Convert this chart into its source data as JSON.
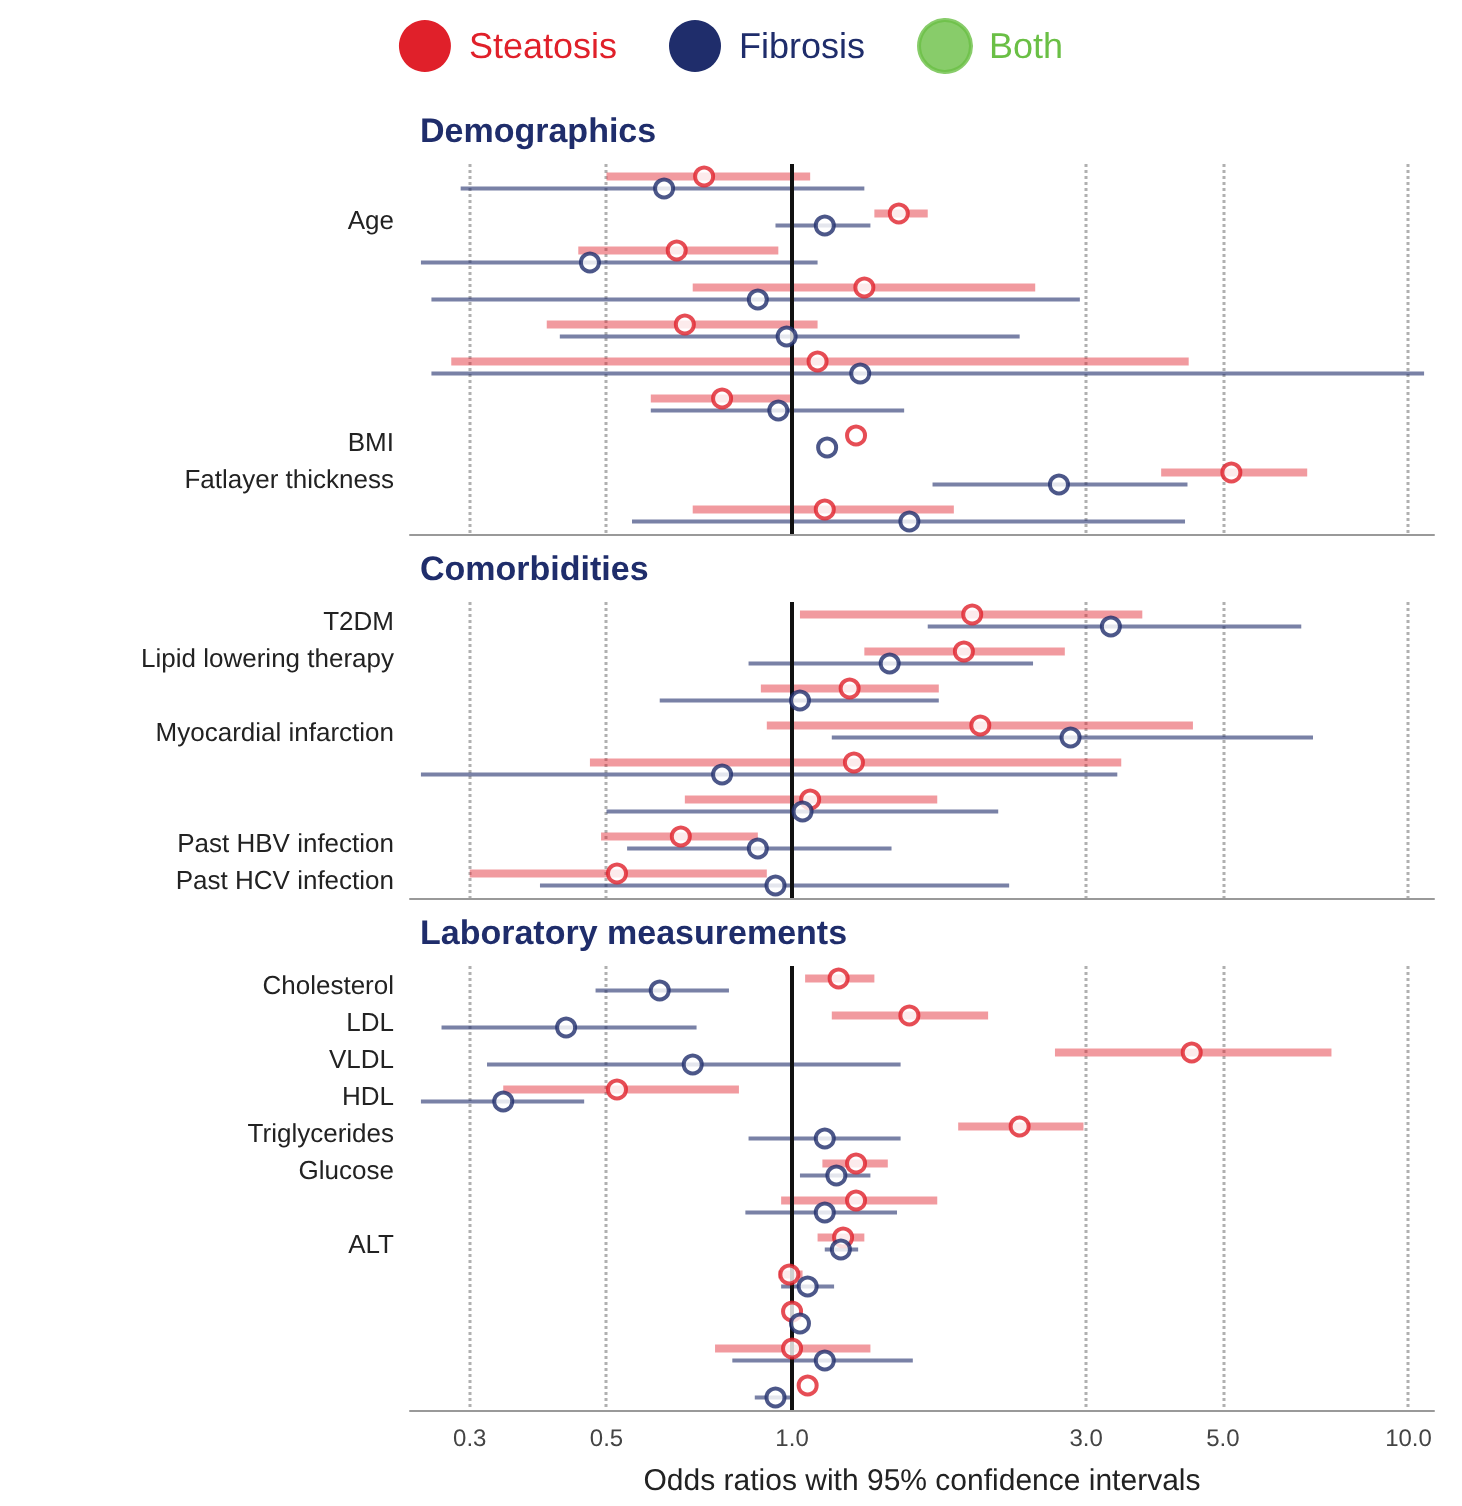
{
  "chart_data": [
    {
      "type": "scatter",
      "orientation": "horizontal",
      "title": "Demographics",
      "legend": "top",
      "log": "x",
      "grid": "x",
      "tick_labels": "y",
      "marker": "circle",
      "categories": [
        null,
        "Age",
        null,
        null,
        null,
        null,
        null,
        "BMI",
        "Fatlayer thickness",
        null
      ],
      "xlim": [
        0.24,
        11
      ],
      "xticks": [
        {
          "value": 0.3,
          "label": null
        },
        {
          "value": 0.5,
          "label": null
        },
        {
          "value": 1,
          "label": null
        },
        {
          "value": 3,
          "label": null
        },
        {
          "value": 5,
          "label": null
        },
        {
          "value": 10,
          "label": null
        }
      ],
      "ref_lines": [
        {
          "axis": "x",
          "value": 1,
          "color": "#111111"
        }
      ],
      "series": [
        {
          "name": "Steatosis",
          "color": "#e0202a",
          "values": [
            0.72,
            1.49,
            0.65,
            1.31,
            0.67,
            1.1,
            0.77,
            1.27,
            5.16,
            1.13
          ],
          "errors": [
            [
              0.5,
              1.07
            ],
            [
              1.36,
              1.66
            ],
            [
              0.45,
              0.95
            ],
            [
              0.69,
              2.48
            ],
            [
              0.4,
              1.1
            ],
            [
              0.28,
              4.4
            ],
            [
              0.59,
              1.0
            ],
            null,
            [
              3.97,
              6.85
            ],
            [
              0.69,
              1.83
            ]
          ]
        },
        {
          "name": "Fibrosis",
          "color": "#1f2d6b",
          "values": [
            0.62,
            1.13,
            0.47,
            0.88,
            0.98,
            1.29,
            0.95,
            1.14,
            2.71,
            1.55
          ],
          "errors": [
            [
              0.29,
              1.31
            ],
            [
              0.94,
              1.34
            ],
            [
              0.25,
              1.1
            ],
            [
              0.26,
              2.93
            ],
            [
              0.42,
              2.34
            ],
            [
              0.26,
              10.6
            ],
            [
              0.59,
              1.52
            ],
            null,
            [
              1.69,
              4.38
            ],
            [
              0.55,
              4.34
            ]
          ]
        },
        {
          "name": "Both",
          "color": "#6abf45",
          "values": [
            null,
            null,
            null,
            null,
            null,
            null,
            null,
            null,
            null,
            null
          ]
        }
      ]
    },
    {
      "type": "scatter",
      "orientation": "horizontal",
      "title": "Comorbidities",
      "log": "x",
      "grid": "x",
      "tick_labels": "y",
      "marker": "circle",
      "categories": [
        "T2DM",
        "Lipid lowering therapy",
        null,
        "Myocardial infarction",
        null,
        null,
        "Past HBV infection",
        "Past HCV infection"
      ],
      "xlim": [
        0.24,
        11
      ],
      "xticks": [
        {
          "value": 0.3,
          "label": null
        },
        {
          "value": 0.5,
          "label": null
        },
        {
          "value": 1,
          "label": null
        },
        {
          "value": 3,
          "label": null
        },
        {
          "value": 5,
          "label": null
        },
        {
          "value": 10,
          "label": null
        }
      ],
      "ref_lines": [
        {
          "axis": "x",
          "value": 1,
          "color": "#111111"
        }
      ],
      "series": [
        {
          "color": "#e0202a",
          "values": [
            1.96,
            1.9,
            1.24,
            2.02,
            1.26,
            1.07,
            0.66,
            0.52
          ],
          "errors": [
            [
              1.03,
              3.7
            ],
            [
              1.31,
              2.77
            ],
            [
              0.89,
              1.73
            ],
            [
              0.91,
              4.47
            ],
            [
              0.47,
              3.42
            ],
            [
              0.67,
              1.72
            ],
            [
              0.49,
              0.88
            ],
            [
              0.3,
              0.91
            ]
          ]
        },
        {
          "color": "#1f2d6b",
          "values": [
            3.29,
            1.44,
            1.03,
            2.83,
            0.77,
            1.04,
            0.88,
            0.94
          ],
          "errors": [
            [
              1.66,
              6.7
            ],
            [
              0.85,
              2.46
            ],
            [
              0.61,
              1.73
            ],
            [
              1.16,
              7.0
            ],
            [
              0.25,
              3.37
            ],
            [
              0.5,
              2.16
            ],
            [
              0.54,
              1.45
            ],
            [
              0.39,
              2.25
            ]
          ]
        }
      ]
    },
    {
      "type": "scatter",
      "orientation": "horizontal",
      "title": "Laboratory measurements",
      "xlabel": "Odds ratios with 95% confidence intervals",
      "log": "x",
      "grid": "x",
      "marker": "circle",
      "categories": [
        "Cholesterol",
        "LDL",
        "VLDL",
        "HDL",
        "Triglycerides",
        "Glucose",
        null,
        "ALT",
        null,
        null,
        null,
        null
      ],
      "xlim": [
        0.24,
        11
      ],
      "xticks": [
        {
          "value": 0.3,
          "label": "0.3"
        },
        {
          "value": 0.5,
          "label": "0.5"
        },
        {
          "value": 1,
          "label": "1.0"
        },
        {
          "value": 3,
          "label": "3.0"
        },
        {
          "value": 5,
          "label": "5.0"
        },
        {
          "value": 10,
          "label": "10.0"
        }
      ],
      "ref_lines": [
        {
          "axis": "x",
          "value": 1,
          "color": "#111111"
        }
      ],
      "series": [
        {
          "color": "#e0202a",
          "values": [
            1.19,
            1.55,
            4.45,
            0.52,
            2.34,
            1.27,
            1.27,
            1.21,
            0.99,
            1.0,
            1.0,
            1.06
          ],
          "errors": [
            [
              1.05,
              1.36
            ],
            [
              1.16,
              2.08
            ],
            [
              2.67,
              7.5
            ],
            [
              0.34,
              0.82
            ],
            [
              1.86,
              2.97
            ],
            [
              1.12,
              1.43
            ],
            [
              0.96,
              1.72
            ],
            [
              1.1,
              1.31
            ],
            [
              0.95,
              1.04
            ],
            null,
            [
              0.75,
              1.34
            ],
            null
          ]
        },
        {
          "color": "#1f2d6b",
          "values": [
            0.61,
            0.43,
            0.69,
            0.34,
            1.13,
            1.18,
            1.13,
            1.2,
            1.06,
            1.03,
            1.13,
            0.94
          ],
          "errors": [
            [
              0.48,
              0.79
            ],
            [
              0.27,
              0.7
            ],
            [
              0.32,
              1.5
            ],
            [
              0.25,
              0.46
            ],
            [
              0.85,
              1.5
            ],
            [
              1.03,
              1.34
            ],
            [
              0.84,
              1.48
            ],
            [
              1.13,
              1.28
            ],
            [
              0.96,
              1.17
            ],
            null,
            [
              0.8,
              1.57
            ],
            [
              0.87,
              1.0
            ]
          ]
        }
      ]
    }
  ]
}
